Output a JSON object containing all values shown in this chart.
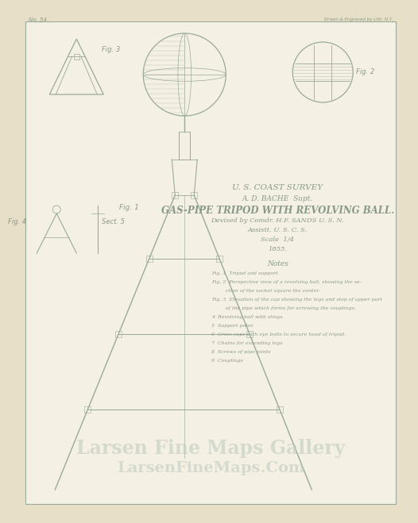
{
  "bg_color": "#e8dfc8",
  "paper_color": "#f5f0e4",
  "line_color": "#9aaa9a",
  "dark_line": "#8a9a8a",
  "text_color": "#8a9a8a",
  "light_text": "#aabcaa",
  "watermark_color": "#c8d4c8",
  "title1": "U. S. COAST SURVEY",
  "title2": "A. D. BACHE  Supt.",
  "title3": "GAS-PIPE TRIPOD WITH REVOLVING BALL.",
  "title4": "Devised by Comdr. H.F. SANDS U. S. N.",
  "title5": "Assistt. U. S. C. S.",
  "title6": "Scale  1/4",
  "title7": "1855.",
  "notes_title": "Notes",
  "fig1_label": "Fig. 1",
  "fig2_label": "Fig. 2",
  "fig3_label": "Fig. 3",
  "fig4_label": "Fig. 4",
  "fig5_label": "Sect. 5",
  "no_label": "No. 54",
  "header_right": "Drawn & Engraved by Lith. N.Y.",
  "watermark1": "Larsen Fine Maps Gallery",
  "watermark2": "LarsenFineMaps.Com",
  "note_lines": [
    "Fig. 1  Tripod and support.",
    "Fig. 2  Perspective view of a revolving ball, showing the se-",
    "         ction of the socket square the center.",
    "Fig. 3  Elevation of the cap showing the legs and stop of upper part",
    "         of the pipe which forms for screwing the couplings.",
    "4  Revolving ball with slings.",
    "5  Support poles",
    "6  Cross caps with eye bolts to secure head of tripod.",
    "7  Chains for extending legs",
    "8  Screws of pipe joints",
    "9  Couplings"
  ]
}
